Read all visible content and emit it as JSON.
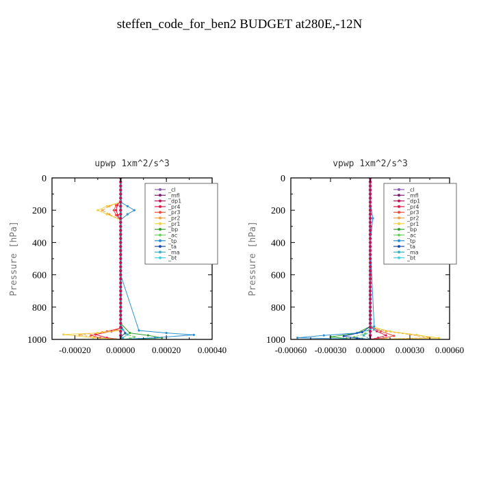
{
  "title": "steffen_code_for_ben2  BUDGET at280E,-12N",
  "chart_data": [
    {
      "type": "line",
      "title": "upwp   1xm^2/s^3",
      "ylabel": "Pressure [hPa]",
      "xlim": [
        -0.0003,
        0.0004
      ],
      "ylim": [
        1000,
        0
      ],
      "xticks": [
        -0.0002,
        0,
        0.0002,
        0.0004
      ],
      "xtick_labels": [
        "-0.00020",
        "0.00000",
        "0.00020",
        "0.00040"
      ],
      "yticks": [
        0,
        200,
        400,
        600,
        800,
        1000
      ],
      "ytick_labels": [
        "0",
        "200",
        "400",
        "600",
        "800",
        "1000"
      ],
      "legend": "top-right",
      "grid": false,
      "series": [
        {
          "name": "_cl",
          "color": "#8a5ab0",
          "x": [
            0,
            0,
            0,
            0,
            0,
            0
          ],
          "y": [
            0,
            200,
            400,
            600,
            800,
            1000
          ]
        },
        {
          "name": "_mfl",
          "color": "#7a1a6e",
          "x": [
            0,
            0,
            0,
            0,
            0,
            0
          ],
          "y": [
            0,
            200,
            400,
            600,
            800,
            1000
          ]
        },
        {
          "name": "_dp1",
          "color": "#c0135a",
          "x": [
            0,
            0,
            0,
            0,
            0,
            0
          ],
          "y": [
            0,
            200,
            400,
            600,
            800,
            1000
          ]
        },
        {
          "name": "_pr4",
          "color": "#e0184a",
          "x": [
            0,
            0,
            -1.5e-05,
            -2e-05,
            -1.2e-05,
            0,
            0,
            0,
            -4e-05,
            -0.00011,
            -6e-05,
            0
          ],
          "y": [
            0,
            140,
            170,
            200,
            230,
            270,
            600,
            930,
            950,
            970,
            990,
            1000
          ]
        },
        {
          "name": "_pr3",
          "color": "#ee4a3a",
          "x": [
            0,
            0,
            -2e-05,
            -3e-05,
            -2e-05,
            0,
            0,
            0,
            -6e-05,
            -0.00013,
            -9e-05,
            0
          ],
          "y": [
            0,
            140,
            170,
            200,
            230,
            270,
            600,
            930,
            950,
            975,
            990,
            1000
          ]
        },
        {
          "name": "_pr2",
          "color": "#f2a040",
          "x": [
            0,
            0,
            -5e-05,
            -8e-05,
            -5e-05,
            0,
            0,
            0,
            -8e-05,
            -0.00018,
            -0.0001,
            0
          ],
          "y": [
            0,
            150,
            175,
            200,
            225,
            260,
            600,
            940,
            955,
            972,
            990,
            1000
          ]
        },
        {
          "name": "_pr1",
          "color": "#f0d040",
          "x": [
            0,
            0,
            -6e-05,
            -0.0001,
            -6e-05,
            0,
            0,
            0,
            -0.0001,
            -0.00025,
            -0.00012,
            0
          ],
          "y": [
            0,
            150,
            175,
            200,
            225,
            260,
            600,
            945,
            960,
            970,
            990,
            1000
          ]
        },
        {
          "name": "_bp",
          "color": "#2ea02e",
          "x": [
            0,
            0,
            4e-05,
            0.00012,
            0.00018,
            8e-05,
            0
          ],
          "y": [
            0,
            900,
            960,
            975,
            990,
            998,
            1000
          ]
        },
        {
          "name": "_ac",
          "color": "#6ad060",
          "x": [
            0,
            0,
            2e-05,
            6e-05,
            4e-05,
            0
          ],
          "y": [
            0,
            900,
            965,
            985,
            995,
            1000
          ]
        },
        {
          "name": "_tp",
          "color": "#2a90d0",
          "x": [
            0,
            0,
            3e-05,
            6e-05,
            3e-05,
            0,
            0,
            8e-05,
            0.0002,
            0.00032,
            0.00015,
            0
          ],
          "y": [
            0,
            150,
            175,
            200,
            225,
            260,
            600,
            945,
            960,
            972,
            990,
            1000
          ]
        },
        {
          "name": "_ta",
          "color": "#1a4ab0",
          "x": [
            0,
            0,
            5e-06,
            2e-05,
            0,
            0
          ],
          "y": [
            0,
            900,
            930,
            960,
            985,
            1000
          ]
        },
        {
          "name": "_ma",
          "color": "#3ab0c0",
          "x": [
            0,
            0,
            1e-05,
            3e-05,
            1e-05,
            0
          ],
          "y": [
            0,
            900,
            940,
            970,
            990,
            1000
          ]
        },
        {
          "name": "_bt",
          "color": "#40d0e0",
          "x": [
            0,
            0,
            0,
            0
          ],
          "y": [
            0,
            500,
            900,
            1000
          ]
        }
      ]
    },
    {
      "type": "line",
      "title": "vpwp   1xm^2/s^3",
      "ylabel": "Pressure [hPa]",
      "xlim": [
        -0.0006,
        0.0006
      ],
      "ylim": [
        1000,
        0
      ],
      "xticks": [
        -0.0006,
        -0.0003,
        0,
        0.0003,
        0.0006
      ],
      "xtick_labels": [
        "-0.00060",
        "-0.00030",
        "0.00000",
        "0.00030",
        "0.00060"
      ],
      "yticks": [
        0,
        200,
        400,
        600,
        800,
        1000
      ],
      "ytick_labels": [
        "0",
        "200",
        "400",
        "600",
        "800",
        "1000"
      ],
      "legend": "top-right",
      "grid": false,
      "series": [
        {
          "name": "_cl",
          "color": "#8a5ab0",
          "x": [
            0,
            0,
            0,
            0,
            0,
            0
          ],
          "y": [
            0,
            200,
            400,
            600,
            800,
            1000
          ]
        },
        {
          "name": "_mfl",
          "color": "#7a1a6e",
          "x": [
            0,
            0,
            0,
            0,
            0,
            0
          ],
          "y": [
            0,
            200,
            400,
            600,
            800,
            1000
          ]
        },
        {
          "name": "_dp1",
          "color": "#c0135a",
          "x": [
            0,
            0,
            0,
            0,
            0,
            0
          ],
          "y": [
            0,
            200,
            400,
            600,
            800,
            1000
          ]
        },
        {
          "name": "_pr4",
          "color": "#e0184a",
          "x": [
            0,
            0,
            5e-05,
            0.00012,
            6e-05,
            0
          ],
          "y": [
            0,
            920,
            950,
            975,
            990,
            1000
          ]
        },
        {
          "name": "_pr3",
          "color": "#ee4a3a",
          "x": [
            0,
            0,
            8e-05,
            0.00018,
            0.0001,
            0
          ],
          "y": [
            0,
            920,
            950,
            978,
            992,
            1000
          ]
        },
        {
          "name": "_pr2",
          "color": "#f2a040",
          "x": [
            0,
            0,
            0.00012,
            0.0003,
            0.00045,
            0.0001,
            0
          ],
          "y": [
            0,
            920,
            950,
            970,
            990,
            998,
            1000
          ]
        },
        {
          "name": "_pr1",
          "color": "#f0d040",
          "x": [
            0,
            0,
            0.00015,
            0.00035,
            0.00052,
            0.00012,
            0
          ],
          "y": [
            0,
            920,
            950,
            972,
            992,
            998,
            1000
          ]
        },
        {
          "name": "_bp",
          "color": "#2ea02e",
          "x": [
            0,
            0,
            -0.0001,
            -0.0003,
            -0.00018,
            0
          ],
          "y": [
            0,
            920,
            960,
            985,
            995,
            1000
          ]
        },
        {
          "name": "_ac",
          "color": "#6ad060",
          "x": [
            0,
            0,
            -4e-05,
            -0.00012,
            -6e-05,
            0
          ],
          "y": [
            0,
            930,
            965,
            985,
            995,
            1000
          ]
        },
        {
          "name": "_tp",
          "color": "#2a90d0",
          "x": [
            0,
            0,
            2e-05,
            0,
            3e-05,
            0,
            -0.0001,
            -0.00035,
            -0.00055,
            -0.0002,
            0
          ],
          "y": [
            0,
            150,
            250,
            400,
            920,
            940,
            960,
            975,
            990,
            997,
            1000
          ]
        },
        {
          "name": "_ta",
          "color": "#1a4ab0",
          "x": [
            0,
            0,
            -6e-05,
            -0.0002,
            -0.0001,
            0
          ],
          "y": [
            0,
            920,
            955,
            980,
            993,
            1000
          ]
        },
        {
          "name": "_ma",
          "color": "#3ab0c0",
          "x": [
            0,
            0,
            3e-05,
            -5e-05,
            0
          ],
          "y": [
            0,
            900,
            940,
            975,
            1000
          ]
        },
        {
          "name": "_bt",
          "color": "#40d0e0",
          "x": [
            0,
            0,
            0,
            0
          ],
          "y": [
            0,
            500,
            900,
            1000
          ]
        }
      ]
    }
  ]
}
